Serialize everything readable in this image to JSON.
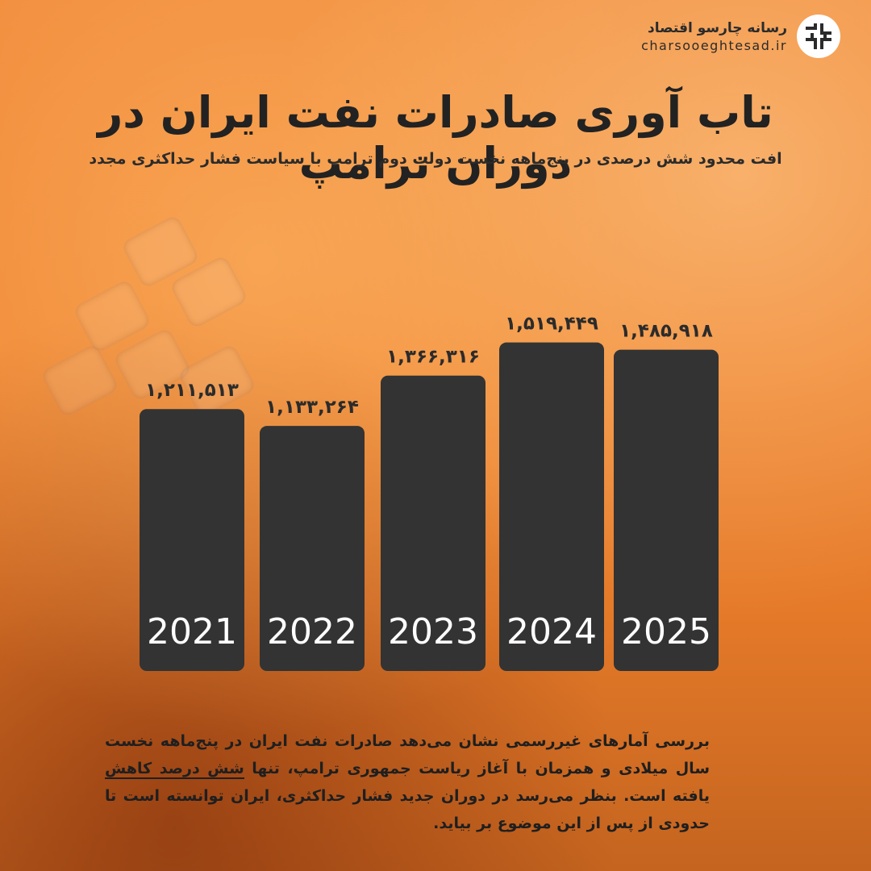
{
  "brand": {
    "name": "رسانه چارسو اقتصاد",
    "url": "charsooeghtesad.ir"
  },
  "title": "تاب آوری صادرات نفت ایران در دوران ترامپ",
  "subtitle": "افت محدود شش درصدی در پنج‌ماهه نخست دولت دوم ترامپ با سیاست فشار حداکثری مجدد",
  "chart_data": {
    "type": "bar",
    "title": "تاب آوری صادرات نفت ایران در دوران ترامپ",
    "subtitle": "افت محدود شش درصدی در پنج‌ماهه نخست دولت دوم ترامپ با سیاست فشار حداکثری مجدد",
    "categories": [
      "2021",
      "2022",
      "2023",
      "2024",
      "2025"
    ],
    "values": [
      1211513,
      1133264,
      1366316,
      1519449,
      1485918
    ],
    "value_labels": [
      "۱,۲۱۱,۵۱۳",
      "۱,۱۳۳,۲۶۴",
      "۱,۳۶۶,۳۱۶",
      "۱,۵۱۹,۴۴۹",
      "۱,۴۸۵,۹۱۸"
    ],
    "xlabel": "",
    "ylabel": "",
    "grid": false,
    "legend": "none",
    "colors": {
      "bar": "#333333",
      "category_text": "#ffffff",
      "value_text": "#2b2b2b",
      "background": "#ef8431"
    }
  },
  "body": {
    "part1": "بررسی آمارهای غیررسمی نشان می‌دهد صادرات نفت ایران در پنج‌ماهه نخست سال میلادی و همزمان با آغاز ریاست جمهوری ترامپ، تنها ",
    "highlight": "شش درصد کاهش",
    "part2": " یافته است. بنظر می‌رسد در دوران جدید فشار حداکثری، ایران توانسته است تا حدودی از پس از این موضوع بر بیاید."
  }
}
